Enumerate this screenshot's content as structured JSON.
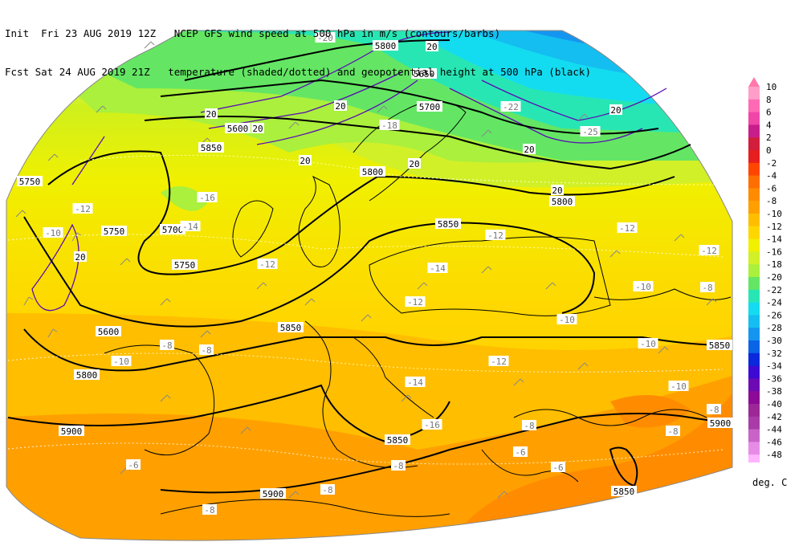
{
  "header": {
    "line1": "Init  Fri 23 AUG 2019 12Z   NCEP GFS wind speed at 500 hPa in m/s (contours/barbs)",
    "line2": "Fcst Sat 24 AUG 2019 21Z   temperature (shaded/dotted) and geopotential height at 500 hPa (black)"
  },
  "colorbar": {
    "units": "deg. C",
    "levels": [
      "10",
      "8",
      "6",
      "4",
      "2",
      "0",
      "-2",
      "-4",
      "-6",
      "-8",
      "-10",
      "-12",
      "-14",
      "-16",
      "-18",
      "-20",
      "-22",
      "-24",
      "-26",
      "-28",
      "-30",
      "-32",
      "-34",
      "-36",
      "-38",
      "-40",
      "-42",
      "-44",
      "-46",
      "-48"
    ],
    "colors": [
      "#ff9ec8",
      "#ff6ab5",
      "#f046a8",
      "#c81e8c",
      "#d21e3c",
      "#e61e1e",
      "#ff4600",
      "#ff6e00",
      "#ff8c00",
      "#ffa000",
      "#ffbe00",
      "#ffd700",
      "#f0f000",
      "#d2f028",
      "#aaf03c",
      "#64e664",
      "#28e6b4",
      "#14dcf0",
      "#14bef0",
      "#1496f0",
      "#0a64e6",
      "#0a28dc",
      "#3c0ad2",
      "#6e0ab4",
      "#8c0a96",
      "#9b2896",
      "#aa3caa",
      "#c864c8",
      "#e68ce6",
      "#ffb4ff"
    ],
    "top_color": "#ff78aa"
  },
  "height_labels": [
    "5800",
    "5650",
    "5700",
    "5600",
    "5850",
    "5750",
    "5800",
    "5750",
    "5800",
    "5850",
    "5700",
    "5750",
    "5600",
    "5850",
    "5800",
    "5850",
    "5900",
    "5850",
    "5900",
    "5850",
    "5900"
  ],
  "temp_labels": [
    "-20",
    "-22",
    "-25",
    "-18",
    "-16",
    "-14",
    "-12",
    "-10",
    "-12",
    "-14",
    "-10",
    "-12",
    "-12",
    "-12",
    "-10",
    "-12",
    "-10",
    "-8",
    "-8",
    "-8",
    "-10",
    "-12",
    "-14",
    "-16",
    "-10",
    "-8",
    "-8",
    "-8",
    "-6",
    "-8",
    "-8",
    "-6",
    "-8",
    "-6"
  ],
  "wind_labels": [
    "20",
    "20",
    "20",
    "20",
    "20",
    "20",
    "20",
    "20",
    "20",
    "20"
  ]
}
